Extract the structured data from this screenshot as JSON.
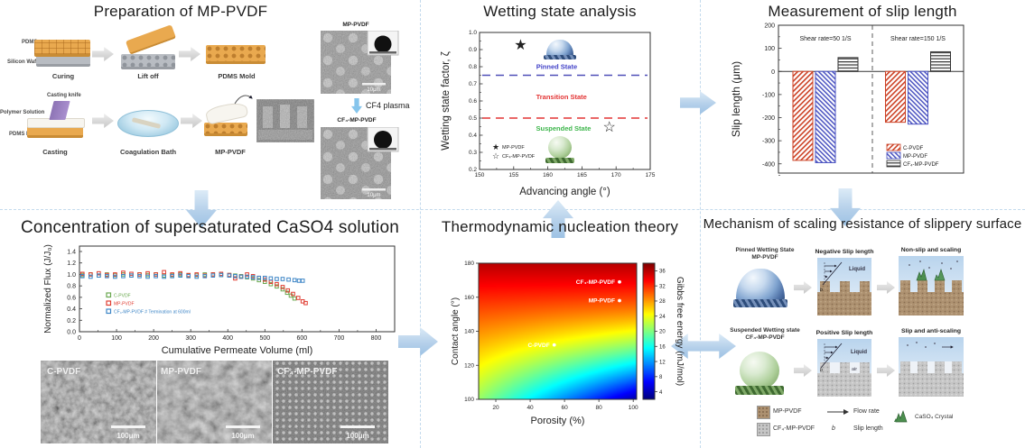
{
  "panels": {
    "prep": {
      "title": "Preparation of MP-PVDF",
      "row1": {
        "pdms": "PDMS",
        "wafer": "Silicon Wafer",
        "curing": "Curing",
        "liftoff": "Lift off",
        "mold": "PDMS Mold"
      },
      "row2": {
        "knife": "Casting knife",
        "solution": "Polymer Solution",
        "mold": "PDMS Mold",
        "casting": "Casting",
        "bath": "Coagulation Bath",
        "mp": "MP-PVDF"
      },
      "sem": {
        "top_label": "MP-PVDF",
        "plasma": "CF4 plasma",
        "bottom_label": "CF₄-MP-PVDF",
        "scale": "10μm"
      }
    },
    "wetting": {
      "title": "Wetting state analysis"
    },
    "slip": {
      "title": "Measurement of slip length"
    },
    "conc": {
      "title": "Concentration of supersaturated CaSO4 solution",
      "sem_labels": [
        "C-PVDF",
        "MP-PVDF",
        "CF₄-MP-PVDF"
      ],
      "scale": "100μm"
    },
    "nuc": {
      "title": "Thermodynamic nucleation theory"
    },
    "mech": {
      "title": "Mechanism of scaling resistance of slippery surface",
      "row1": {
        "state": "Pinned Wetting State",
        "name": "MP-PVDF",
        "d1": "Negative Slip length",
        "d2": "Non-slip and scaling",
        "liquid": "Liquid"
      },
      "row2": {
        "state": "Suspended Wetting state",
        "name": "CF₄-MP-PVDF",
        "d1": "Positive Slip length",
        "d2": "Slip and anti-scaling",
        "liquid": "Liquid",
        "air": "air"
      },
      "legend": {
        "s1": "MP-PVDF",
        "s2": "CF₄-MP-PVDF",
        "flow": "Flow rate",
        "b": "b",
        "slip": "Slip length",
        "crystal": "CaSO₄ Crystal"
      }
    }
  },
  "chart_data": [
    {
      "id": "wetting",
      "type": "scatter",
      "title": "Wetting state analysis",
      "xlabel": "Advancing angle (°)",
      "ylabel": "Wetting state factor, ζ",
      "xlim": [
        150,
        175
      ],
      "ylim": [
        0.2,
        1.0
      ],
      "xticks": [
        150,
        155,
        160,
        165,
        170,
        175
      ],
      "yticks": [
        0.2,
        0.3,
        0.4,
        0.5,
        0.6,
        0.7,
        0.8,
        0.9,
        1.0
      ],
      "grid": false,
      "series": [
        {
          "name": "MP-PVDF",
          "marker": "star-filled",
          "points": [
            [
              156,
              0.93
            ]
          ]
        },
        {
          "name": "CF₄-MP-PVDF",
          "marker": "star-open",
          "points": [
            [
              169,
              0.45
            ]
          ]
        }
      ],
      "hlines": [
        {
          "y": 0.75,
          "color": "#5050b8",
          "style": "dashed"
        },
        {
          "y": 0.5,
          "color": "#e33535",
          "style": "dashed"
        }
      ],
      "annotations": [
        {
          "text": "Pinned State",
          "x": 161.3,
          "y": 0.8,
          "color": "#4343c8"
        },
        {
          "text": "Transition State",
          "x": 162.0,
          "y": 0.625,
          "color": "#e33535"
        },
        {
          "text": "Suspended State",
          "x": 162.3,
          "y": 0.44,
          "color": "#3cb54a"
        }
      ],
      "legend_position": "lower-left"
    },
    {
      "id": "slip",
      "type": "bar",
      "title": "Measurement of slip length",
      "xlabel": "",
      "ylabel": "Slip length (μm)",
      "ylim": [
        -440,
        200
      ],
      "yticks": [
        200,
        100,
        0,
        -100,
        -200,
        -300,
        -400
      ],
      "groups": [
        "Shear rate=50 1/S",
        "Shear rate=150 1/S"
      ],
      "series": [
        {
          "name": "C-PVDF",
          "values": [
            -385,
            -220
          ],
          "hatch": "diagonal",
          "color": "#cc4125"
        },
        {
          "name": "MP-PVDF",
          "values": [
            -395,
            -228
          ],
          "hatch": "diagonal",
          "color": "#4a52c0"
        },
        {
          "name": "CF₄-MP-PVDF",
          "values": [
            60,
            85
          ],
          "hatch": "horizontal",
          "color": "#333333"
        }
      ],
      "legend_position": "lower-right"
    },
    {
      "id": "flux",
      "type": "scatter",
      "title": "Concentration of supersaturated CaSO4 solution",
      "xlabel": "Cumulative Permeate Volume (ml)",
      "ylabel": "Normalized Flux (J/J₀)",
      "xlim": [
        0,
        850
      ],
      "ylim": [
        0.0,
        1.4
      ],
      "xticks": [
        0,
        100,
        200,
        300,
        400,
        500,
        600,
        700,
        800
      ],
      "yticks": [
        0.0,
        0.2,
        0.4,
        0.6,
        0.8,
        1.0,
        1.2,
        1.4
      ],
      "marker": "open-square",
      "series": [
        {
          "name": "C-PVDF",
          "color": "#6aa84f",
          "points": [
            [
              8,
              0.99
            ],
            [
              30,
              1.0
            ],
            [
              52,
              0.98
            ],
            [
              74,
              1.0
            ],
            [
              96,
              0.99
            ],
            [
              118,
              1.0
            ],
            [
              140,
              0.98
            ],
            [
              162,
              1.0
            ],
            [
              184,
              0.99
            ],
            [
              206,
              1.0
            ],
            [
              228,
              0.98
            ],
            [
              250,
              0.99
            ],
            [
              272,
              1.0
            ],
            [
              294,
              0.98
            ],
            [
              316,
              0.99
            ],
            [
              338,
              1.0
            ],
            [
              360,
              1.0
            ],
            [
              382,
              0.99
            ],
            [
              404,
              0.99
            ],
            [
              420,
              0.98
            ],
            [
              436,
              0.97
            ],
            [
              452,
              0.95
            ],
            [
              468,
              0.93
            ],
            [
              484,
              0.9
            ],
            [
              500,
              0.87
            ],
            [
              516,
              0.83
            ],
            [
              532,
              0.79
            ],
            [
              548,
              0.74
            ],
            [
              560,
              0.68
            ],
            [
              570,
              0.63
            ],
            [
              580,
              0.58
            ]
          ]
        },
        {
          "name": "MP-PVDF",
          "color": "#e03c31",
          "points": [
            [
              8,
              1.01
            ],
            [
              30,
              1.0
            ],
            [
              52,
              1.02
            ],
            [
              74,
              0.99
            ],
            [
              96,
              1.0
            ],
            [
              118,
              1.03
            ],
            [
              140,
              1.01
            ],
            [
              162,
              1.0
            ],
            [
              184,
              1.02
            ],
            [
              206,
              1.0
            ],
            [
              228,
              1.04
            ],
            [
              250,
              1.0
            ],
            [
              272,
              1.02
            ],
            [
              294,
              0.99
            ],
            [
              316,
              1.0
            ],
            [
              338,
              0.98
            ],
            [
              360,
              1.0
            ],
            [
              382,
              1.01
            ],
            [
              404,
              0.99
            ],
            [
              420,
              0.93
            ],
            [
              436,
              0.96
            ],
            [
              452,
              1.0
            ],
            [
              468,
              0.97
            ],
            [
              484,
              0.94
            ],
            [
              500,
              0.91
            ],
            [
              516,
              0.87
            ],
            [
              532,
              0.83
            ],
            [
              548,
              0.78
            ],
            [
              562,
              0.72
            ],
            [
              576,
              0.66
            ],
            [
              590,
              0.59
            ],
            [
              602,
              0.53
            ],
            [
              610,
              0.5
            ]
          ]
        },
        {
          "name": "CF₄-MP-PVDF # Termination at 600ml",
          "color": "#3d85c6",
          "points": [
            [
              8,
              0.97
            ],
            [
              30,
              0.96
            ],
            [
              52,
              0.98
            ],
            [
              74,
              0.97
            ],
            [
              96,
              0.96
            ],
            [
              118,
              0.97
            ],
            [
              140,
              0.98
            ],
            [
              162,
              0.97
            ],
            [
              184,
              0.96
            ],
            [
              206,
              0.97
            ],
            [
              228,
              0.96
            ],
            [
              250,
              0.97
            ],
            [
              272,
              0.98
            ],
            [
              294,
              0.97
            ],
            [
              316,
              0.96
            ],
            [
              338,
              0.97
            ],
            [
              360,
              0.98
            ],
            [
              382,
              0.99
            ],
            [
              404,
              0.98
            ],
            [
              420,
              0.97
            ],
            [
              436,
              0.96
            ],
            [
              452,
              0.96
            ],
            [
              468,
              0.95
            ],
            [
              484,
              0.94
            ],
            [
              500,
              0.94
            ],
            [
              516,
              0.93
            ],
            [
              532,
              0.92
            ],
            [
              548,
              0.92
            ],
            [
              564,
              0.91
            ],
            [
              580,
              0.9
            ],
            [
              592,
              0.89
            ],
            [
              602,
              0.89
            ]
          ]
        }
      ],
      "legend_position": "lower-left"
    },
    {
      "id": "nucleation",
      "type": "heatmap",
      "title": "Thermodynamic nucleation theory",
      "xlabel": "Porosity (%)",
      "ylabel": "Contact angle (°)",
      "xlim": [
        10,
        102
      ],
      "ylim": [
        100,
        180
      ],
      "xticks": [
        20,
        40,
        60,
        80,
        100
      ],
      "yticks": [
        100,
        120,
        140,
        160,
        180
      ],
      "colormap": "jet",
      "colorbar": {
        "label": "Gibbs free energy (mJ/mol)",
        "ticks": [
          4,
          8,
          12,
          16,
          20,
          24,
          28,
          32,
          36
        ],
        "range": [
          2,
          38
        ]
      },
      "points": [
        {
          "name": "CF₄-MP-PVDF",
          "x": 92,
          "y": 169
        },
        {
          "name": "MP-PVDF",
          "x": 92,
          "y": 158
        },
        {
          "name": "C-PVDF",
          "x": 54,
          "y": 132
        }
      ]
    }
  ]
}
